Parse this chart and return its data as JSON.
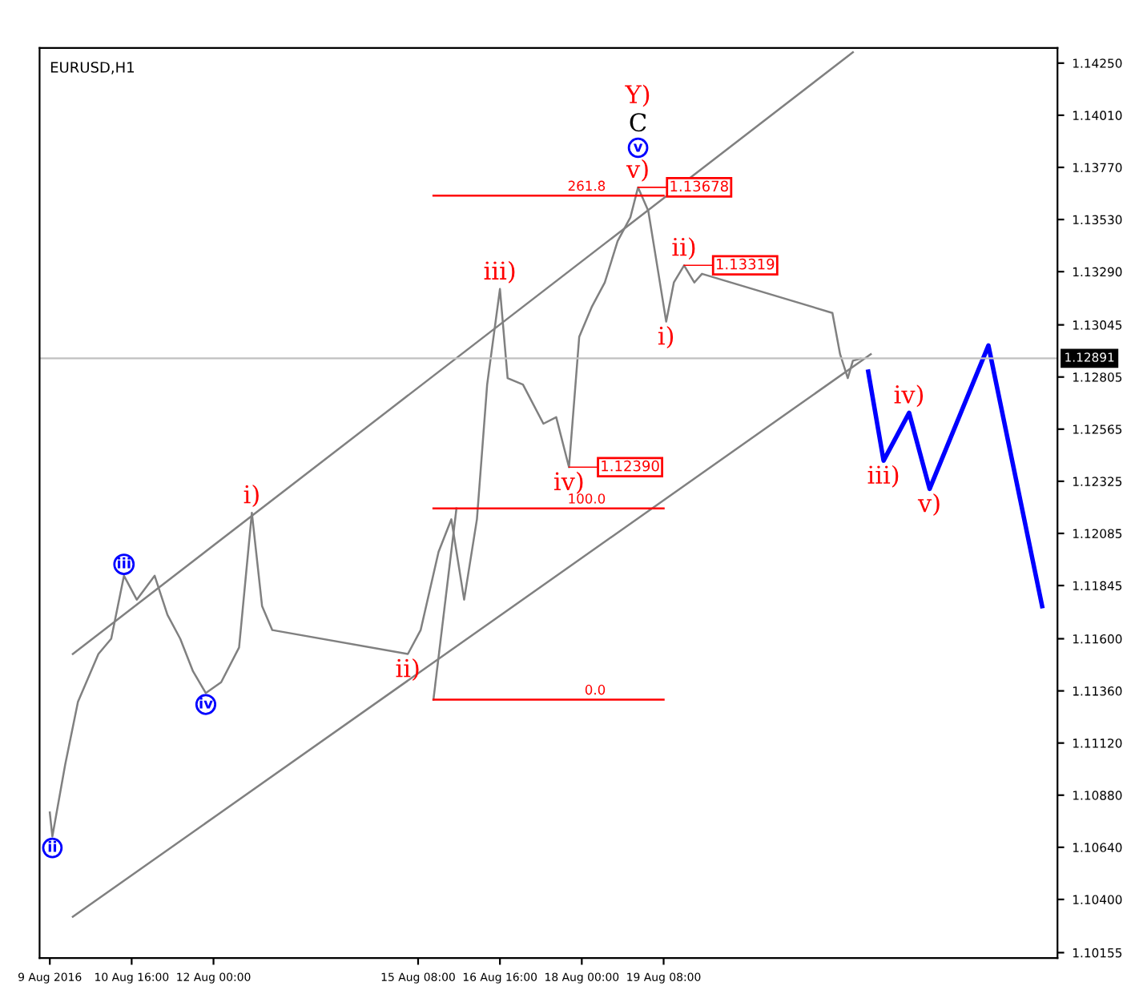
{
  "chart_data": {
    "type": "line",
    "title": "EURUSD,H1",
    "xlim": [
      "2016-08-09T04:00",
      "2016-08-25T18:00"
    ],
    "ylim": [
      1.1013,
      1.1432
    ],
    "xticks": [
      {
        "value": "2016-08-09T08:00",
        "label": "9 Aug 2016"
      },
      {
        "value": "2016-08-10T16:00",
        "label": "10 Aug 16:00"
      },
      {
        "value": "2016-08-12T00:00",
        "label": "12 Aug 00:00"
      },
      {
        "value": "2016-08-15T08:00",
        "label": "15 Aug 08:00"
      },
      {
        "value": "2016-08-16T16:00",
        "label": "16 Aug 16:00"
      },
      {
        "value": "2016-08-18T00:00",
        "label": "18 Aug 00:00"
      },
      {
        "value": "2016-08-19T08:00",
        "label": "19 Aug 08:00"
      }
    ],
    "yticks": [
      {
        "value": 1.1425,
        "label": "1.14250"
      },
      {
        "value": 1.1401,
        "label": "1.14010"
      },
      {
        "value": 1.1377,
        "label": "1.13770"
      },
      {
        "value": 1.1353,
        "label": "1.13530"
      },
      {
        "value": 1.1329,
        "label": "1.13290"
      },
      {
        "value": 1.13045,
        "label": "1.13045"
      },
      {
        "value": 1.12805,
        "label": "1.12805"
      },
      {
        "value": 1.12565,
        "label": "1.12565"
      },
      {
        "value": 1.12325,
        "label": "1.12325"
      },
      {
        "value": 1.12085,
        "label": "1.12085"
      },
      {
        "value": 1.11845,
        "label": "1.11845"
      },
      {
        "value": 1.116,
        "label": "1.11600"
      },
      {
        "value": 1.1136,
        "label": "1.11360"
      },
      {
        "value": 1.1112,
        "label": "1.11120"
      },
      {
        "value": 1.1088,
        "label": "1.10880"
      },
      {
        "value": 1.1064,
        "label": "1.10640"
      },
      {
        "value": 1.104,
        "label": "1.10400"
      },
      {
        "value": 1.10155,
        "label": "1.10155"
      }
    ],
    "grid": false,
    "legend": false,
    "marker": "none",
    "line_style": "solid",
    "series": [
      {
        "color": "#808080",
        "x": [
          "2016-08-09T08:00",
          "2016-08-09T09:00",
          "2016-08-09T14:00",
          "2016-08-09T19:00",
          "2016-08-10T03:00",
          "2016-08-10T08:00",
          "2016-08-10T13:00",
          "2016-08-10T18:00",
          "2016-08-11T01:00",
          "2016-08-11T06:00",
          "2016-08-11T11:00",
          "2016-08-11T16:00",
          "2016-08-11T21:00",
          "2016-08-12T03:00",
          "2016-08-12T10:00",
          "2016-08-12T15:00",
          "2016-08-12T19:00",
          "2016-08-12T23:00",
          "2016-08-15T04:00",
          "2016-08-15T09:00",
          "2016-08-15T16:00",
          "2016-08-15T21:00",
          "2016-08-16T02:00",
          "2016-08-16T07:00",
          "2016-08-16T11:00",
          "2016-08-16T16:00",
          "2016-08-16T19:00",
          "2016-08-17T01:00",
          "2016-08-17T09:00",
          "2016-08-17T14:00",
          "2016-08-17T19:00",
          "2016-08-17T23:00",
          "2016-08-18T04:00",
          "2016-08-18T09:00",
          "2016-08-18T14:00",
          "2016-08-18T19:00",
          "2016-08-18T22:00",
          "2016-08-19T02:00",
          "2016-08-19T06:00",
          "2016-08-19T09:00",
          "2016-08-19T12:00",
          "2016-08-19T16:00",
          "2016-08-19T20:00",
          "2016-08-19T23:00",
          "2016-08-22T02:00",
          "2016-08-22T05:00",
          "2016-08-22T08:00",
          "2016-08-22T10:00",
          "2016-08-22T13:00"
        ],
        "values": [
          1.108,
          1.1069,
          1.1102,
          1.1131,
          1.1153,
          1.116,
          1.1189,
          1.1178,
          1.1189,
          1.1171,
          1.116,
          1.1145,
          1.1135,
          1.114,
          1.1156,
          1.1218,
          1.1175,
          1.1164,
          1.1153,
          1.1164,
          1.12,
          1.1215,
          1.1178,
          1.1215,
          1.1277,
          1.1321,
          1.128,
          1.1277,
          1.1259,
          1.1262,
          1.1239,
          1.1299,
          1.1313,
          1.1324,
          1.1343,
          1.1354,
          1.13678,
          1.1357,
          1.1328,
          1.1306,
          1.1324,
          1.13319,
          1.1324,
          1.1328,
          1.131,
          1.1291,
          1.128,
          1.1288,
          1.1289
        ]
      },
      {
        "color": "#0000ff",
        "x": [
          "2016-08-22T16:00",
          "2016-08-22T22:00",
          "2016-08-23T08:00",
          "2016-08-23T16:00",
          "2016-08-24T15:00",
          "2016-08-25T12:00"
        ],
        "values": [
          1.1283,
          1.1242,
          1.1264,
          1.1229,
          1.1295,
          1.1175
        ]
      },
      {
        "color": "#808080",
        "x": [
          "2016-08-09T17:00",
          "2016-08-22T10:00"
        ],
        "values": [
          1.1153,
          1.143
        ]
      },
      {
        "color": "#808080",
        "x": [
          "2016-08-09T17:00",
          "2016-08-22T17:00"
        ],
        "values": [
          1.1032,
          1.1291
        ]
      },
      {
        "color": "#808080",
        "x": [
          "2016-08-15T14:00",
          "2016-08-15T23:00"
        ],
        "values": [
          1.1132,
          1.122
        ]
      },
      {
        "name": "261.8",
        "color": "#ff0000",
        "x": [
          "2016-08-15T14:00",
          "2016-08-19T08:00"
        ],
        "values": [
          1.1364,
          1.1364
        ]
      },
      {
        "name": "100.0",
        "color": "#ff0000",
        "x": [
          "2016-08-15T14:00",
          "2016-08-19T08:00"
        ],
        "values": [
          1.122,
          1.122
        ]
      },
      {
        "name": "0.0",
        "color": "#ff0000",
        "x": [
          "2016-08-15T14:00",
          "2016-08-19T08:00"
        ],
        "values": [
          1.1132,
          1.1132
        ]
      }
    ],
    "ref_lines": [
      {
        "axis": "y",
        "value": 1.12891,
        "label": "1.12891",
        "color": "#c0c0c0"
      }
    ],
    "annotations": [
      {
        "text": "v)",
        "x": "2016-08-18T22:00",
        "y": 1.13678
      },
      "v",
      "C",
      "Y)",
      {
        "text": "1.13678",
        "x": "2016-08-18T22:00",
        "y": 1.13678
      },
      {
        "text": "iii)",
        "x": "2016-08-16T16:00",
        "y": 1.1321
      },
      {
        "text": "ii)",
        "x": "2016-08-19T16:00",
        "y": 1.13319
      },
      {
        "text": "1.13319",
        "x": "2016-08-19T16:00",
        "y": 1.13319
      },
      {
        "text": "i)",
        "x": "2016-08-19T09:00",
        "y": 1.1306
      },
      {
        "text": "iv)",
        "x": "2016-08-23T08:00",
        "y": 1.1264
      },
      {
        "text": "iii)",
        "x": "2016-08-22T22:00",
        "y": 1.1242
      },
      {
        "text": "v)",
        "x": "2016-08-23T16:00",
        "y": 1.1229
      },
      {
        "text": "1.12390",
        "x": "2016-08-17T19:00",
        "y": 1.1239
      },
      {
        "text": "iv)",
        "x": "2016-08-17T19:00",
        "y": 1.1239
      },
      {
        "text": "i)",
        "x": "2016-08-12T15:00",
        "y": 1.1218
      },
      {
        "text": "iii",
        "x": "2016-08-10T13:00",
        "y": 1.1189
      },
      {
        "text": "ii)",
        "x": "2016-08-15T04:00",
        "y": 1.1153
      },
      {
        "text": "iv",
        "x": "2016-08-11T21:00",
        "y": 1.1135
      },
      {
        "text": "ii",
        "x": "2016-08-09T09:00",
        "y": 1.1069
      }
    ]
  }
}
